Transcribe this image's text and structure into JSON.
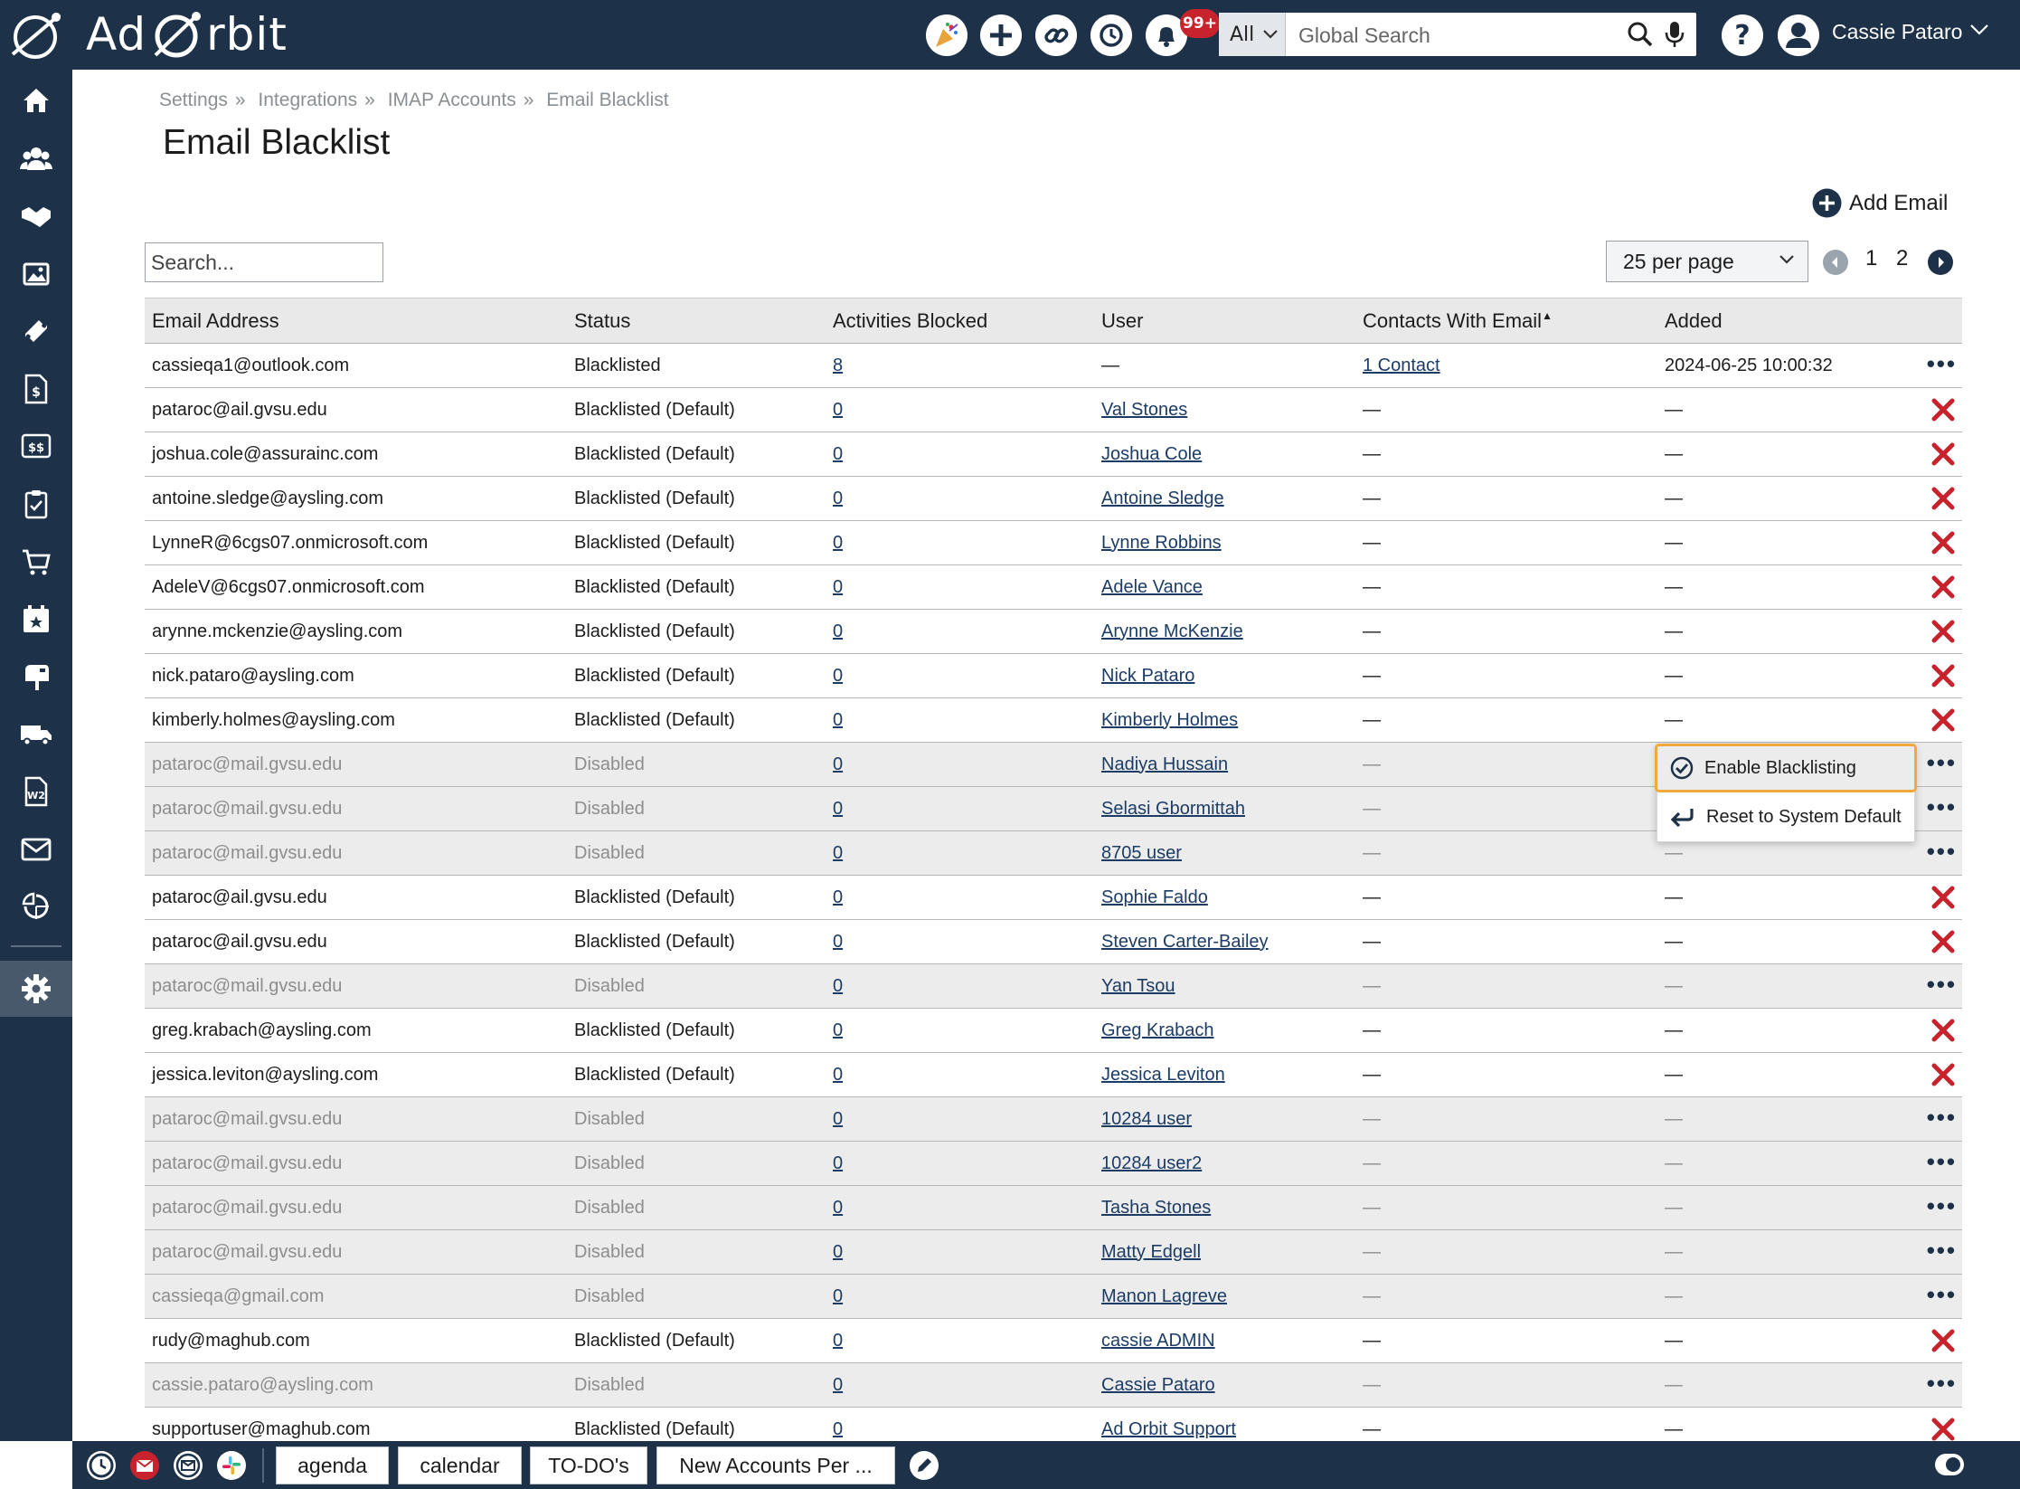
{
  "brand": {
    "name_left": "Ad",
    "name_right": "rbit"
  },
  "topbar": {
    "badge": "99+",
    "search_scope": "All",
    "search_placeholder": "Global Search",
    "user_name": "Cassie Pataro"
  },
  "breadcrumb": [
    "Settings",
    "Integrations",
    "IMAP Accounts",
    "Email Blacklist"
  ],
  "page_title": "Email Blacklist",
  "add_email_label": "Add Email",
  "table_search_placeholder": "Search...",
  "per_page": "25 per page",
  "pages": [
    "1",
    "2"
  ],
  "columns": [
    "Email Address",
    "Status",
    "Activities Blocked",
    "User",
    "Contacts With Email",
    "Added"
  ],
  "sort_indicator": "▲",
  "rows": [
    {
      "email": "cassieqa1@outlook.com",
      "status": "Blacklisted",
      "blocked": "8",
      "user": "—",
      "contacts": "1 Contact",
      "added": "2024-06-25 10:00:32",
      "action": "menu",
      "disabled": false,
      "user_link": false,
      "contacts_link": true
    },
    {
      "email": "pataroc@ail.gvsu.edu",
      "status": "Blacklisted (Default)",
      "blocked": "0",
      "user": "Val Stones",
      "contacts": "—",
      "added": "—",
      "action": "remove",
      "disabled": false,
      "user_link": true,
      "contacts_link": false
    },
    {
      "email": "joshua.cole@assurainc.com",
      "status": "Blacklisted (Default)",
      "blocked": "0",
      "user": "Joshua Cole",
      "contacts": "—",
      "added": "—",
      "action": "remove",
      "disabled": false,
      "user_link": true,
      "contacts_link": false
    },
    {
      "email": "antoine.sledge@aysling.com",
      "status": "Blacklisted (Default)",
      "blocked": "0",
      "user": "Antoine Sledge",
      "contacts": "—",
      "added": "—",
      "action": "remove",
      "disabled": false,
      "user_link": true,
      "contacts_link": false
    },
    {
      "email": "LynneR@6cgs07.onmicrosoft.com",
      "status": "Blacklisted (Default)",
      "blocked": "0",
      "user": "Lynne Robbins",
      "contacts": "—",
      "added": "—",
      "action": "remove",
      "disabled": false,
      "user_link": true,
      "contacts_link": false
    },
    {
      "email": "AdeleV@6cgs07.onmicrosoft.com",
      "status": "Blacklisted (Default)",
      "blocked": "0",
      "user": "Adele Vance",
      "contacts": "—",
      "added": "—",
      "action": "remove",
      "disabled": false,
      "user_link": true,
      "contacts_link": false
    },
    {
      "email": "arynne.mckenzie@aysling.com",
      "status": "Blacklisted (Default)",
      "blocked": "0",
      "user": "Arynne McKenzie",
      "contacts": "—",
      "added": "—",
      "action": "remove",
      "disabled": false,
      "user_link": true,
      "contacts_link": false
    },
    {
      "email": "nick.pataro@aysling.com",
      "status": "Blacklisted (Default)",
      "blocked": "0",
      "user": "Nick Pataro",
      "contacts": "—",
      "added": "—",
      "action": "remove",
      "disabled": false,
      "user_link": true,
      "contacts_link": false
    },
    {
      "email": "kimberly.holmes@aysling.com",
      "status": "Blacklisted (Default)",
      "blocked": "0",
      "user": "Kimberly Holmes",
      "contacts": "—",
      "added": "—",
      "action": "remove",
      "disabled": false,
      "user_link": true,
      "contacts_link": false
    },
    {
      "email": "pataroc@mail.gvsu.edu",
      "status": "Disabled",
      "blocked": "0",
      "user": "Nadiya Hussain",
      "contacts": "—",
      "added": "—",
      "action": "menu",
      "disabled": true,
      "user_link": true,
      "contacts_link": false
    },
    {
      "email": "pataroc@mail.gvsu.edu",
      "status": "Disabled",
      "blocked": "0",
      "user": "Selasi Gbormittah",
      "contacts": "—",
      "added": "—",
      "action": "menu",
      "disabled": true,
      "user_link": true,
      "contacts_link": false
    },
    {
      "email": "pataroc@mail.gvsu.edu",
      "status": "Disabled",
      "blocked": "0",
      "user": "8705 user",
      "contacts": "—",
      "added": "—",
      "action": "menu",
      "disabled": true,
      "user_link": true,
      "contacts_link": false
    },
    {
      "email": "pataroc@ail.gvsu.edu",
      "status": "Blacklisted (Default)",
      "blocked": "0",
      "user": "Sophie Faldo",
      "contacts": "—",
      "added": "—",
      "action": "remove",
      "disabled": false,
      "user_link": true,
      "contacts_link": false
    },
    {
      "email": "pataroc@ail.gvsu.edu",
      "status": "Blacklisted (Default)",
      "blocked": "0",
      "user": "Steven Carter-Bailey",
      "contacts": "—",
      "added": "—",
      "action": "remove",
      "disabled": false,
      "user_link": true,
      "contacts_link": false
    },
    {
      "email": "pataroc@mail.gvsu.edu",
      "status": "Disabled",
      "blocked": "0",
      "user": "Yan Tsou",
      "contacts": "—",
      "added": "—",
      "action": "menu",
      "disabled": true,
      "user_link": true,
      "contacts_link": false
    },
    {
      "email": "greg.krabach@aysling.com",
      "status": "Blacklisted (Default)",
      "blocked": "0",
      "user": "Greg Krabach",
      "contacts": "—",
      "added": "—",
      "action": "remove",
      "disabled": false,
      "user_link": true,
      "contacts_link": false
    },
    {
      "email": "jessica.leviton@aysling.com",
      "status": "Blacklisted (Default)",
      "blocked": "0",
      "user": "Jessica Leviton",
      "contacts": "—",
      "added": "—",
      "action": "remove",
      "disabled": false,
      "user_link": true,
      "contacts_link": false
    },
    {
      "email": "pataroc@mail.gvsu.edu",
      "status": "Disabled",
      "blocked": "0",
      "user": "10284 user",
      "contacts": "—",
      "added": "—",
      "action": "menu",
      "disabled": true,
      "user_link": true,
      "contacts_link": false
    },
    {
      "email": "pataroc@mail.gvsu.edu",
      "status": "Disabled",
      "blocked": "0",
      "user": "10284 user2",
      "contacts": "—",
      "added": "—",
      "action": "menu",
      "disabled": true,
      "user_link": true,
      "contacts_link": false
    },
    {
      "email": "pataroc@mail.gvsu.edu",
      "status": "Disabled",
      "blocked": "0",
      "user": "Tasha Stones",
      "contacts": "—",
      "added": "—",
      "action": "menu",
      "disabled": true,
      "user_link": true,
      "contacts_link": false
    },
    {
      "email": "pataroc@mail.gvsu.edu",
      "status": "Disabled",
      "blocked": "0",
      "user": "Matty Edgell",
      "contacts": "—",
      "added": "—",
      "action": "menu",
      "disabled": true,
      "user_link": true,
      "contacts_link": false
    },
    {
      "email": "cassieqa@gmail.com",
      "status": "Disabled",
      "blocked": "0",
      "user": "Manon Lagreve",
      "contacts": "—",
      "added": "—",
      "action": "menu",
      "disabled": true,
      "user_link": true,
      "contacts_link": false
    },
    {
      "email": "rudy@maghub.com",
      "status": "Blacklisted (Default)",
      "blocked": "0",
      "user": "cassie ADMIN",
      "contacts": "—",
      "added": "—",
      "action": "remove",
      "disabled": false,
      "user_link": true,
      "contacts_link": false
    },
    {
      "email": "cassie.pataro@aysling.com",
      "status": "Disabled",
      "blocked": "0",
      "user": "Cassie Pataro",
      "contacts": "—",
      "added": "—",
      "action": "menu",
      "disabled": true,
      "user_link": true,
      "contacts_link": false
    },
    {
      "email": "supportuser@maghub.com",
      "status": "Blacklisted (Default)",
      "blocked": "0",
      "user": "Ad Orbit Support",
      "contacts": "—",
      "added": "—",
      "action": "remove",
      "disabled": false,
      "user_link": true,
      "contacts_link": false
    }
  ],
  "context_menu": {
    "items": [
      "Enable Blacklisting",
      "Reset to System Default"
    ]
  },
  "bottom_tabs": [
    "agenda",
    "calendar",
    "TO-DO's",
    "New Accounts Per ..."
  ],
  "colors": {
    "nav_bg": "#1d3249",
    "remove_red": "#c8232c",
    "highlight_border": "#f2a93b",
    "disabled_row_bg": "#ececec"
  },
  "icons": {
    "sidebar": [
      "home-icon",
      "contacts-icon",
      "handshake-icon",
      "media-icon",
      "ticket-icon",
      "invoice-icon",
      "billing-icon",
      "clipboard-icon",
      "cart-icon",
      "calendar-star-icon",
      "mailbox-icon",
      "truck-icon",
      "w2-icon",
      "mail-icon",
      "reports-icon",
      "gear-icon"
    ],
    "topbar": [
      "party-icon",
      "plus-icon",
      "link-icon",
      "history-icon",
      "bell-icon"
    ]
  }
}
